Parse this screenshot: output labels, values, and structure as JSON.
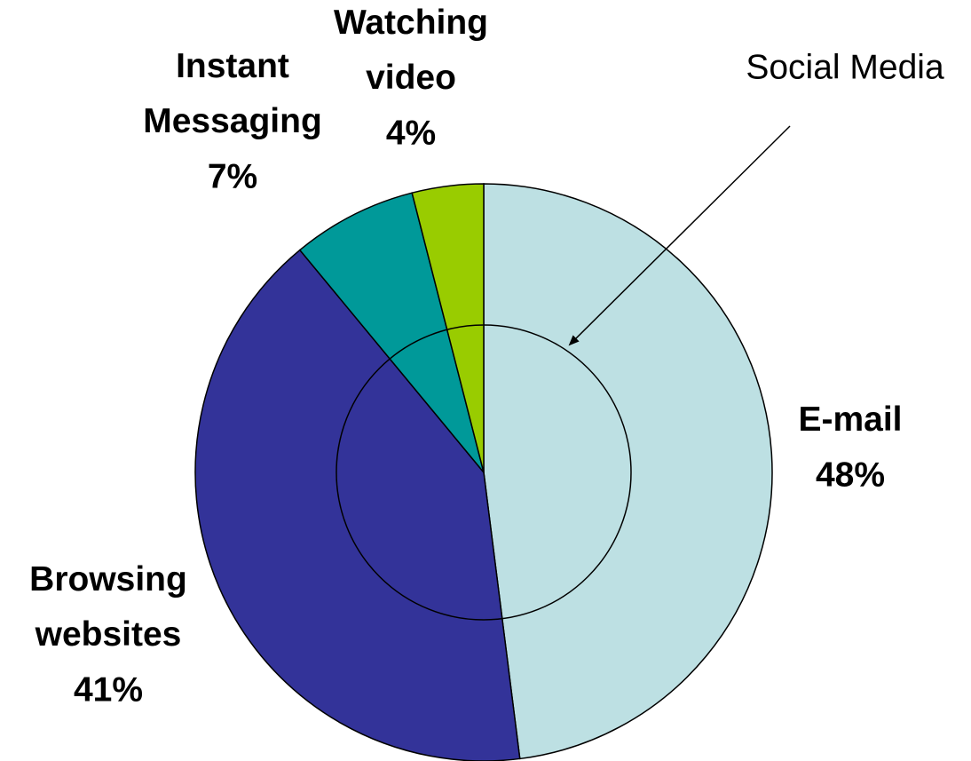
{
  "chart_data": {
    "type": "pie",
    "categories": [
      "E-mail",
      "Browsing websites",
      "Instant Messaging",
      "Watching video"
    ],
    "values": [
      48,
      41,
      7,
      4
    ],
    "value_labels": [
      "48%",
      "41%",
      "7%",
      "4%"
    ],
    "colors": [
      "#bde0e3",
      "#333399",
      "#009999",
      "#99cc00"
    ],
    "annotation": "Social Media"
  }
}
